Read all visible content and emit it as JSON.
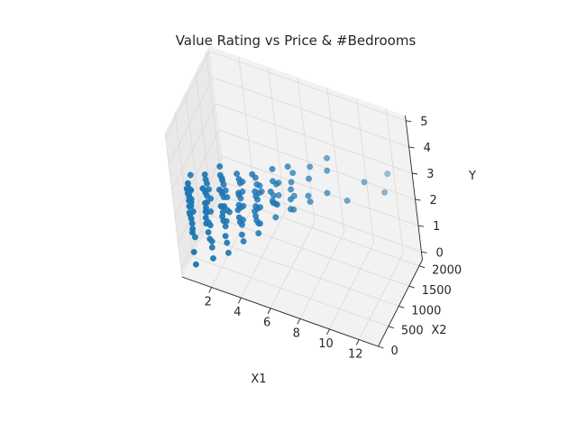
{
  "chart_data": {
    "type": "scatter",
    "projection": "3d",
    "title": "Value Rating vs Price & #Bedrooms",
    "xlabel": "X1",
    "ylabel": "X2",
    "zlabel": "Y",
    "xlim": [
      0,
      13.3
    ],
    "ylim": [
      0,
      2150
    ],
    "zlim": [
      -0.3,
      5.2
    ],
    "xticks": [
      "2",
      "4",
      "6",
      "8",
      "10",
      "12"
    ],
    "yticks": [
      "0",
      "500",
      "1000",
      "1500",
      "2000"
    ],
    "zticks": [
      "0",
      "1",
      "2",
      "3",
      "4",
      "5"
    ],
    "grid": true,
    "series_color": "#1f77b4",
    "pane_color": "#f2f2f2",
    "grid_color": "#d9d9d9",
    "series": [
      {
        "points": [
          [
            1,
            60,
            2.5
          ],
          [
            1,
            100,
            2.8
          ],
          [
            1,
            150,
            3.0
          ],
          [
            1,
            50,
            2.2
          ],
          [
            1,
            120,
            3.1
          ],
          [
            1,
            80,
            2.0
          ],
          [
            1,
            200,
            2.9
          ],
          [
            1,
            170,
            2.6
          ],
          [
            1,
            90,
            1.8
          ],
          [
            1,
            40,
            3.2
          ],
          [
            1,
            130,
            2.4
          ],
          [
            1,
            60,
            1.5
          ],
          [
            1,
            110,
            3.3
          ],
          [
            1,
            70,
            2.7
          ],
          [
            1,
            140,
            1.2
          ],
          [
            1,
            30,
            0.8
          ],
          [
            1,
            50,
            0.3
          ],
          [
            1,
            250,
            3.4
          ],
          [
            1,
            190,
            2.1
          ],
          [
            1,
            85,
            1.6
          ],
          [
            1,
            60,
            3.0
          ],
          [
            1,
            35,
            2.3
          ],
          [
            1,
            95,
            2.9
          ],
          [
            1,
            155,
            2.5
          ],
          [
            2,
            150,
            2.5
          ],
          [
            2,
            200,
            3.0
          ],
          [
            2,
            250,
            2.8
          ],
          [
            2,
            100,
            2.2
          ],
          [
            2,
            300,
            3.2
          ],
          [
            2,
            180,
            1.9
          ],
          [
            2,
            220,
            2.6
          ],
          [
            2,
            130,
            1.6
          ],
          [
            2,
            270,
            3.4
          ],
          [
            2,
            350,
            2.9
          ],
          [
            2,
            160,
            1.3
          ],
          [
            2,
            210,
            0.9
          ],
          [
            2,
            120,
            2.4
          ],
          [
            2,
            90,
            2.0
          ],
          [
            2,
            240,
            1.7
          ],
          [
            2,
            320,
            2.1
          ],
          [
            2,
            190,
            3.1
          ],
          [
            2,
            140,
            2.7
          ],
          [
            2,
            260,
            3.6
          ],
          [
            2,
            380,
            2.5
          ],
          [
            2,
            110,
            3.3
          ],
          [
            2,
            170,
            2.3
          ],
          [
            2,
            230,
            1.1
          ],
          [
            2,
            200,
            0.5
          ],
          [
            3,
            250,
            2.6
          ],
          [
            3,
            300,
            3.0
          ],
          [
            3,
            350,
            2.8
          ],
          [
            3,
            200,
            2.3
          ],
          [
            3,
            400,
            3.2
          ],
          [
            3,
            280,
            1.8
          ],
          [
            3,
            320,
            2.5
          ],
          [
            3,
            230,
            1.5
          ],
          [
            3,
            370,
            3.4
          ],
          [
            3,
            450,
            2.9
          ],
          [
            3,
            260,
            1.2
          ],
          [
            3,
            310,
            3.7
          ],
          [
            3,
            220,
            2.1
          ],
          [
            3,
            190,
            2.7
          ],
          [
            3,
            340,
            1.9
          ],
          [
            3,
            420,
            2.2
          ],
          [
            3,
            290,
            3.1
          ],
          [
            3,
            240,
            2.4
          ],
          [
            3,
            360,
            3.5
          ],
          [
            3,
            480,
            2.6
          ],
          [
            3,
            210,
            3.3
          ],
          [
            3,
            270,
            0.8
          ],
          [
            3,
            330,
            4.0
          ],
          [
            3,
            500,
            2.0
          ],
          [
            4,
            350,
            2.7
          ],
          [
            4,
            400,
            3.0
          ],
          [
            4,
            450,
            2.8
          ],
          [
            4,
            300,
            2.3
          ],
          [
            4,
            500,
            3.3
          ],
          [
            4,
            380,
            1.9
          ],
          [
            4,
            420,
            2.5
          ],
          [
            4,
            330,
            1.6
          ],
          [
            4,
            470,
            3.5
          ],
          [
            4,
            550,
            2.9
          ],
          [
            4,
            360,
            1.3
          ],
          [
            4,
            410,
            3.8
          ],
          [
            4,
            320,
            2.1
          ],
          [
            4,
            290,
            2.6
          ],
          [
            4,
            440,
            2.0
          ],
          [
            4,
            520,
            2.4
          ],
          [
            4,
            390,
            3.1
          ],
          [
            4,
            600,
            3.2
          ],
          [
            5,
            450,
            2.7
          ],
          [
            5,
            500,
            3.0
          ],
          [
            5,
            550,
            2.8
          ],
          [
            5,
            400,
            2.4
          ],
          [
            5,
            600,
            3.3
          ],
          [
            5,
            480,
            2.0
          ],
          [
            5,
            520,
            2.5
          ],
          [
            5,
            430,
            1.7
          ],
          [
            5,
            570,
            3.6
          ],
          [
            5,
            650,
            2.9
          ],
          [
            5,
            700,
            3.1
          ],
          [
            5,
            460,
            3.9
          ],
          [
            5,
            420,
            2.2
          ],
          [
            5,
            390,
            2.6
          ],
          [
            5,
            540,
            1.9
          ],
          [
            5,
            620,
            2.4
          ],
          [
            5,
            490,
            3.2
          ],
          [
            5,
            750,
            2.8
          ],
          [
            6,
            600,
            2.8
          ],
          [
            6,
            650,
            3.0
          ],
          [
            6,
            700,
            2.6
          ],
          [
            6,
            550,
            3.3
          ],
          [
            6,
            750,
            2.5
          ],
          [
            6,
            800,
            3.2
          ],
          [
            6,
            630,
            2.2
          ],
          [
            6,
            680,
            3.5
          ],
          [
            6,
            580,
            2.9
          ],
          [
            6,
            720,
            3.9
          ],
          [
            6,
            850,
            2.7
          ],
          [
            6,
            900,
            3.1
          ],
          [
            7,
            750,
            2.9
          ],
          [
            7,
            800,
            3.2
          ],
          [
            7,
            700,
            2.6
          ],
          [
            7,
            850,
            3.4
          ],
          [
            7,
            900,
            2.8
          ],
          [
            7,
            950,
            3.6
          ],
          [
            7,
            780,
            4.1
          ],
          [
            7,
            820,
            2.4
          ],
          [
            8,
            900,
            3.0
          ],
          [
            8,
            1000,
            3.5
          ],
          [
            8,
            950,
            2.7
          ],
          [
            8,
            1100,
            3.8
          ],
          [
            9,
            1100,
            3.0
          ],
          [
            9,
            1200,
            3.7
          ],
          [
            9,
            1250,
            4.1
          ],
          [
            10,
            1300,
            2.6
          ],
          [
            11,
            1500,
            3.2
          ],
          [
            12,
            1700,
            2.7
          ],
          [
            12,
            1900,
            3.1
          ]
        ]
      }
    ]
  }
}
